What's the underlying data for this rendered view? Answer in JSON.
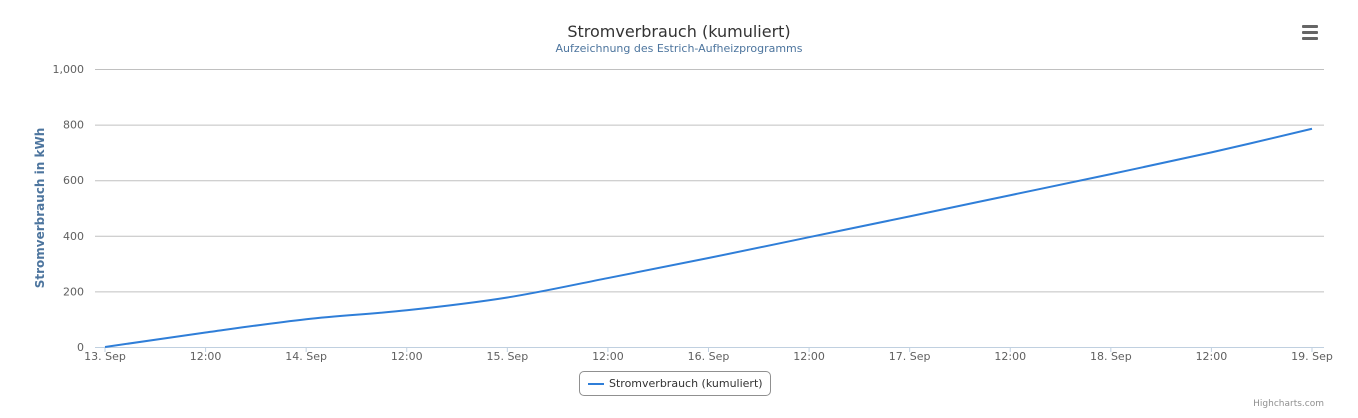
{
  "header": {
    "title": "Stromverbrauch (kumuliert)",
    "subtitle": "Aufzeichnung des Estrich-Aufheizprogramms"
  },
  "menu": {
    "icon": "hamburger-menu-icon"
  },
  "credits": "Highcharts.com",
  "chart_data": {
    "type": "line",
    "title": "Stromverbrauch (kumuliert)",
    "subtitle": "Aufzeichnung des Estrich-Aufheizprogramms",
    "xlabel": "",
    "ylabel": "Stromverbrauch in kWh",
    "x_ticks": [
      "13. Sep",
      "12:00",
      "14. Sep",
      "12:00",
      "15. Sep",
      "12:00",
      "16. Sep",
      "12:00",
      "17. Sep",
      "12:00",
      "18. Sep",
      "12:00",
      "19. Sep"
    ],
    "y_ticks": [
      "0",
      "200",
      "400",
      "600",
      "800",
      "1,000"
    ],
    "xlim": [
      "13. Sep 00:00",
      "19. Sep 00:00"
    ],
    "ylim": [
      0,
      1000
    ],
    "grid": true,
    "legend_position": "bottom-center",
    "colors": {
      "series": "#2f7ed8",
      "grid": "#c0c0c0",
      "axis": "#c0d0e0",
      "text": "#606060",
      "ylabel": "#4d759e"
    },
    "series": [
      {
        "name": "Stromverbrauch (kumuliert)",
        "x": [
          "13. Sep 00:00",
          "13. Sep 12:00",
          "14. Sep 00:00",
          "14. Sep 12:00",
          "15. Sep 00:00",
          "15. Sep 12:00",
          "16. Sep 00:00",
          "16. Sep 12:00",
          "17. Sep 00:00",
          "17. Sep 12:00",
          "18. Sep 00:00",
          "18. Sep 12:00",
          "19. Sep 00:00"
        ],
        "values": [
          0,
          52,
          100,
          132,
          178,
          248,
          320,
          395,
          470,
          546,
          622,
          700,
          785
        ]
      }
    ]
  }
}
